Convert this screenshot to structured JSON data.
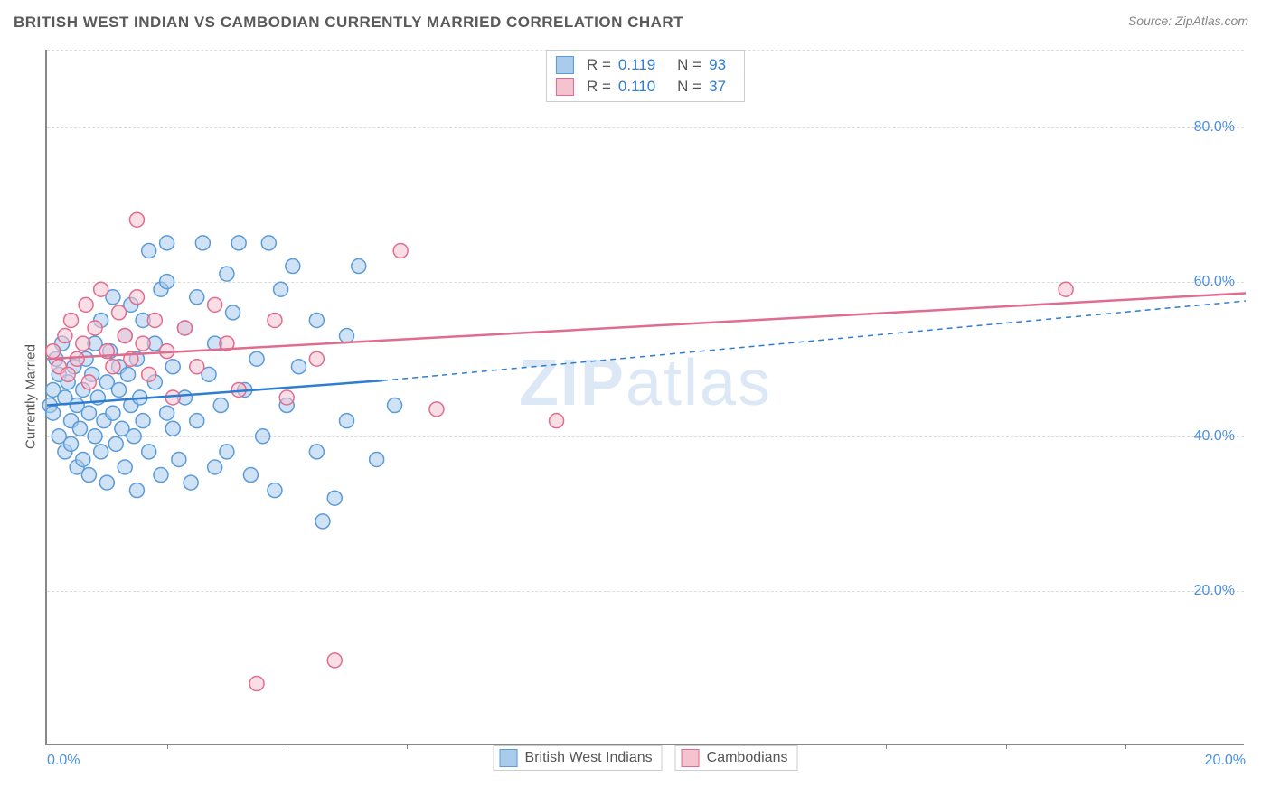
{
  "title": "BRITISH WEST INDIAN VS CAMBODIAN CURRENTLY MARRIED CORRELATION CHART",
  "source": "Source: ZipAtlas.com",
  "watermark_bold": "ZIP",
  "watermark_light": "atlas",
  "y_axis_title": "Currently Married",
  "chart": {
    "type": "scatter",
    "xlim": [
      0,
      20
    ],
    "ylim": [
      0,
      90
    ],
    "x_ticks": [
      0,
      20
    ],
    "x_tick_labels": [
      "0.0%",
      "20.0%"
    ],
    "x_minor_ticks": [
      2,
      4,
      6,
      8,
      10,
      12,
      14,
      16,
      18
    ],
    "y_ticks": [
      20,
      40,
      60,
      80
    ],
    "y_tick_labels": [
      "20.0%",
      "40.0%",
      "60.0%",
      "80.0%"
    ],
    "grid_color": "#dddddd",
    "axis_color": "#888888",
    "background_color": "#ffffff",
    "marker_radius": 8,
    "marker_opacity": 0.55,
    "series": [
      {
        "name": "British West Indians",
        "fill": "#a9cbec",
        "stroke": "#5a9bd8",
        "r_value": "0.119",
        "n_value": "93",
        "trend": {
          "solid": {
            "x1": 0,
            "y1": 44,
            "x2": 5.6,
            "y2": 47.2
          },
          "dashed": {
            "x1": 5.6,
            "y1": 47.2,
            "x2": 20,
            "y2": 57.5
          },
          "color": "#2d7dd2",
          "width": 2.5
        },
        "points": [
          [
            0.05,
            44
          ],
          [
            0.1,
            46
          ],
          [
            0.1,
            43
          ],
          [
            0.15,
            50
          ],
          [
            0.2,
            40
          ],
          [
            0.2,
            48
          ],
          [
            0.25,
            52
          ],
          [
            0.3,
            38
          ],
          [
            0.3,
            45
          ],
          [
            0.35,
            47
          ],
          [
            0.4,
            42
          ],
          [
            0.4,
            39
          ],
          [
            0.45,
            49
          ],
          [
            0.5,
            36
          ],
          [
            0.5,
            44
          ],
          [
            0.55,
            41
          ],
          [
            0.6,
            46
          ],
          [
            0.6,
            37
          ],
          [
            0.65,
            50
          ],
          [
            0.7,
            43
          ],
          [
            0.7,
            35
          ],
          [
            0.75,
            48
          ],
          [
            0.8,
            40
          ],
          [
            0.8,
            52
          ],
          [
            0.85,
            45
          ],
          [
            0.9,
            38
          ],
          [
            0.9,
            55
          ],
          [
            0.95,
            42
          ],
          [
            1.0,
            47
          ],
          [
            1.0,
            34
          ],
          [
            1.05,
            51
          ],
          [
            1.1,
            43
          ],
          [
            1.1,
            58
          ],
          [
            1.15,
            39
          ],
          [
            1.2,
            46
          ],
          [
            1.2,
            49
          ],
          [
            1.25,
            41
          ],
          [
            1.3,
            53
          ],
          [
            1.3,
            36
          ],
          [
            1.35,
            48
          ],
          [
            1.4,
            44
          ],
          [
            1.4,
            57
          ],
          [
            1.45,
            40
          ],
          [
            1.5,
            50
          ],
          [
            1.5,
            33
          ],
          [
            1.55,
            45
          ],
          [
            1.6,
            42
          ],
          [
            1.6,
            55
          ],
          [
            1.7,
            64
          ],
          [
            1.7,
            38
          ],
          [
            1.8,
            47
          ],
          [
            1.8,
            52
          ],
          [
            1.9,
            35
          ],
          [
            1.9,
            59
          ],
          [
            2.0,
            43
          ],
          [
            2.0,
            65
          ],
          [
            2.1,
            41
          ],
          [
            2.1,
            49
          ],
          [
            2.2,
            37
          ],
          [
            2.3,
            54
          ],
          [
            2.3,
            45
          ],
          [
            2.4,
            34
          ],
          [
            2.5,
            58
          ],
          [
            2.5,
            42
          ],
          [
            2.6,
            65
          ],
          [
            2.7,
            48
          ],
          [
            2.8,
            36
          ],
          [
            2.8,
            52
          ],
          [
            2.9,
            44
          ],
          [
            3.0,
            61
          ],
          [
            3.0,
            38
          ],
          [
            3.1,
            56
          ],
          [
            3.2,
            65
          ],
          [
            3.3,
            46
          ],
          [
            3.4,
            35
          ],
          [
            3.5,
            50
          ],
          [
            3.6,
            40
          ],
          [
            3.7,
            65
          ],
          [
            3.8,
            33
          ],
          [
            4.0,
            44
          ],
          [
            4.1,
            62
          ],
          [
            4.2,
            49
          ],
          [
            4.5,
            38
          ],
          [
            4.5,
            55
          ],
          [
            4.6,
            29
          ],
          [
            4.8,
            32
          ],
          [
            5.0,
            42
          ],
          [
            5.2,
            62
          ],
          [
            5.5,
            37
          ],
          [
            5.8,
            44
          ],
          [
            5.0,
            53
          ],
          [
            3.9,
            59
          ],
          [
            2.0,
            60
          ]
        ]
      },
      {
        "name": "Cambodians",
        "fill": "#f5c2d0",
        "stroke": "#e06c8f",
        "r_value": "0.110",
        "n_value": "37",
        "trend": {
          "solid": {
            "x1": 0,
            "y1": 50,
            "x2": 20,
            "y2": 58.5
          },
          "color": "#e06c8f",
          "width": 2.5
        },
        "points": [
          [
            0.1,
            51
          ],
          [
            0.2,
            49
          ],
          [
            0.3,
            53
          ],
          [
            0.35,
            48
          ],
          [
            0.4,
            55
          ],
          [
            0.5,
            50
          ],
          [
            0.6,
            52
          ],
          [
            0.65,
            57
          ],
          [
            0.7,
            47
          ],
          [
            0.8,
            54
          ],
          [
            0.9,
            59
          ],
          [
            1.0,
            51
          ],
          [
            1.1,
            49
          ],
          [
            1.2,
            56
          ],
          [
            1.3,
            53
          ],
          [
            1.4,
            50
          ],
          [
            1.5,
            58
          ],
          [
            1.5,
            68
          ],
          [
            1.6,
            52
          ],
          [
            1.7,
            48
          ],
          [
            1.8,
            55
          ],
          [
            2.0,
            51
          ],
          [
            2.1,
            45
          ],
          [
            2.3,
            54
          ],
          [
            2.5,
            49
          ],
          [
            2.8,
            57
          ],
          [
            3.0,
            52
          ],
          [
            3.2,
            46
          ],
          [
            3.5,
            8
          ],
          [
            3.8,
            55
          ],
          [
            4.0,
            45
          ],
          [
            4.5,
            50
          ],
          [
            4.8,
            11
          ],
          [
            5.9,
            64
          ],
          [
            6.5,
            43.5
          ],
          [
            8.5,
            42
          ],
          [
            17.0,
            59
          ]
        ]
      }
    ]
  },
  "legend_top": {
    "r_label": "R =",
    "n_label": "N ="
  },
  "legend_bottom_labels": [
    "British West Indians",
    "Cambodians"
  ]
}
